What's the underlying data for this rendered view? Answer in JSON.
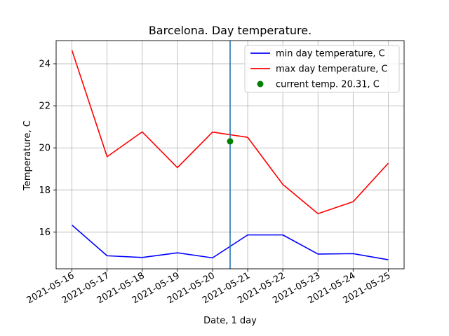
{
  "chart_data": {
    "type": "line",
    "title": "Barcelona. Day temperature.",
    "xlabel": "Date, 1 day",
    "ylabel": "Temperature, C",
    "x": [
      "2021-05-16",
      "2021-05-17",
      "2021-05-18",
      "2021-05-19",
      "2021-05-20",
      "2021-05-21",
      "2021-05-22",
      "2021-05-23",
      "2021-05-24",
      "2021-05-25"
    ],
    "ylim": [
      14.25,
      25.1
    ],
    "yticks": [
      16,
      18,
      20,
      22,
      24
    ],
    "grid": true,
    "legend_position": "top-right",
    "series": [
      {
        "name": "min day temperature, C",
        "color": "#0000ff",
        "values": [
          16.33,
          14.87,
          14.79,
          15.01,
          14.77,
          15.86,
          15.86,
          14.95,
          14.97,
          14.68
        ]
      },
      {
        "name": "max day temperature, C",
        "color": "#ff0000",
        "values": [
          24.64,
          19.58,
          20.76,
          19.06,
          20.75,
          20.5,
          18.26,
          16.87,
          17.44,
          19.27
        ]
      }
    ],
    "current_point": {
      "name": "current temp. 20.31, C",
      "x": "2021-05-20 12:00",
      "x_index": 4.5,
      "y": 20.31,
      "color": "#008000"
    },
    "vertical_line": {
      "x": "2021-05-20 12:00",
      "x_index": 4.5,
      "color": "#1f77b4"
    }
  }
}
